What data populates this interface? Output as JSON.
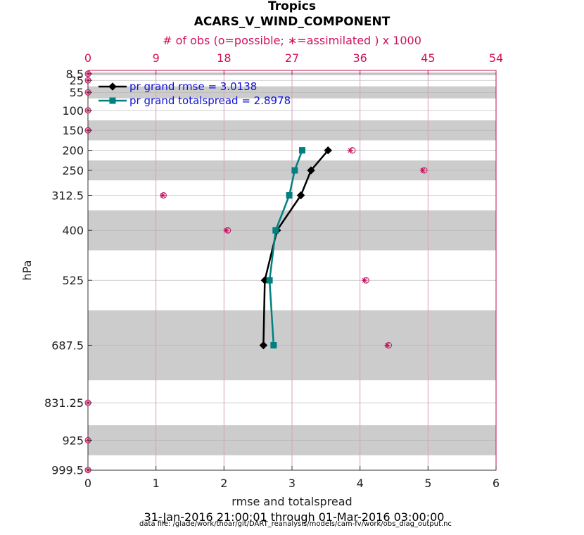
{
  "chart_data": {
    "type": "line",
    "title": "Tropics",
    "subtitle": "ACARS_V_WIND_COMPONENT",
    "xlabel": "rmse and totalspread",
    "ylabel": "hPa",
    "top_xlabel": "# of obs (o=possible; ∗=assimilated ) x 1000",
    "xlim": [
      0,
      6
    ],
    "xticks": [
      0,
      1,
      2,
      3,
      4,
      5,
      6
    ],
    "top_xlim": [
      0,
      54
    ],
    "top_xticks": [
      0,
      9,
      18,
      27,
      36,
      45,
      54
    ],
    "ylim": [
      1000,
      0
    ],
    "yticks": [
      8.5,
      25,
      55,
      100,
      150,
      200,
      250,
      312.5,
      400,
      525,
      687.5,
      831.25,
      925,
      999.5
    ],
    "ytick_labels": [
      "8.5",
      "25",
      "55",
      "100",
      "150",
      "200",
      "250",
      "312.5",
      "400",
      "525",
      "687.5",
      "831.25",
      "925",
      "999.5"
    ],
    "grid": true,
    "legend_position": "top-left",
    "shaded_bands": [
      [
        5,
        12
      ],
      [
        40,
        70
      ],
      [
        125,
        175
      ],
      [
        225,
        275
      ],
      [
        350,
        450
      ],
      [
        600,
        775
      ],
      [
        887.5,
        962.5
      ]
    ],
    "series": [
      {
        "name": "pr grand rmse = 3.0138",
        "color": "#000000",
        "marker": "diamond",
        "points": [
          {
            "x": 3.53,
            "y": 200
          },
          {
            "x": 3.28,
            "y": 250
          },
          {
            "x": 3.13,
            "y": 312.5
          },
          {
            "x": 2.78,
            "y": 400
          },
          {
            "x": 2.6,
            "y": 525
          },
          {
            "x": 2.58,
            "y": 687.5
          }
        ]
      },
      {
        "name": "pr grand totalspread = 2.8978",
        "color": "#008080",
        "marker": "square",
        "points": [
          {
            "x": 3.15,
            "y": 200
          },
          {
            "x": 3.04,
            "y": 250
          },
          {
            "x": 2.96,
            "y": 312.5
          },
          {
            "x": 2.76,
            "y": 400
          },
          {
            "x": 2.67,
            "y": 525
          },
          {
            "x": 2.73,
            "y": 687.5
          }
        ]
      }
    ],
    "obs_counts": {
      "color": "#c0105a",
      "levels": [
        8.5,
        25,
        55,
        100,
        150,
        200,
        250,
        312.5,
        400,
        525,
        687.5,
        831.25,
        925,
        999.5
      ],
      "possible": [
        0,
        0,
        0,
        0,
        0,
        35,
        44.5,
        10,
        18.5,
        36.8,
        39.8,
        0,
        0,
        0
      ],
      "assimilated": [
        0,
        0,
        0,
        0,
        0,
        34.7,
        44.3,
        9.9,
        18.3,
        36.6,
        39.6,
        0,
        0,
        0
      ]
    }
  },
  "footer": {
    "date_range": "31-Jan-2016 21:00:01 through 01-Mar-2016 03:00:00",
    "data_file": "data file: /glade/work/thoar/git/DART_reanalysis/models/cam-fv/work/obs_diag_output.nc"
  }
}
